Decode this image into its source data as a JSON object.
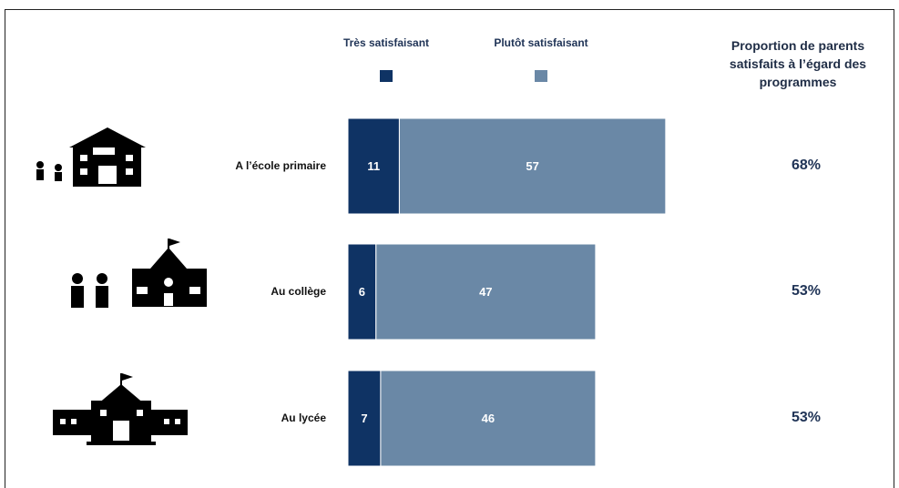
{
  "chart_data": {
    "type": "stacked-bar-horizontal",
    "categories": [
      "A l’école primaire",
      "Au collège",
      "Au lycée"
    ],
    "series": [
      {
        "name": "Très satisfaisant",
        "color": "#0f3364",
        "values": [
          11,
          6,
          7
        ]
      },
      {
        "name": "Plutôt satisfaisant",
        "color": "#6a88a6",
        "values": [
          57,
          47,
          46
        ]
      }
    ],
    "totals": {
      "title": "Proportion de parents satisfaits à l’égard des programmes",
      "values": [
        68,
        53,
        53
      ],
      "value_labels": [
        "68%",
        "53%",
        "53%"
      ]
    }
  }
}
